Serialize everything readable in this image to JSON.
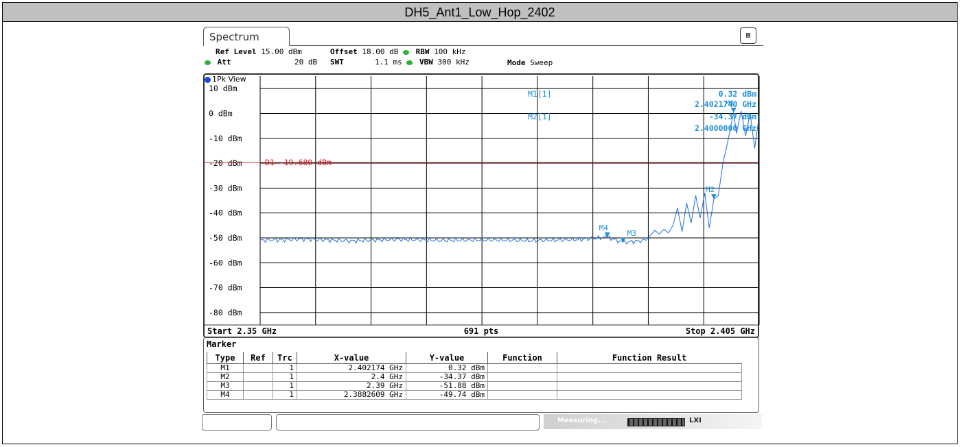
{
  "window": {
    "title": "DH5_Ant1_Low_Hop_2402"
  },
  "analyzer": {
    "tab_label": "Spectrum",
    "settings": {
      "ref_level_label": "Ref Level",
      "ref_level_value": "15.00 dBm",
      "offset_label": "Offset",
      "offset_value": "18.00 dB",
      "rbw_label": "RBW",
      "rbw_value": "100 kHz",
      "att_label": "Att",
      "att_value": "20 dB",
      "swt_label": "SWT",
      "swt_value": "1.1 ms",
      "vbw_label": "VBW",
      "vbw_value": "300 kHz",
      "mode_label": "Mode",
      "mode_value": "Sweep"
    },
    "view_label": "1Pk View",
    "marker_readout": {
      "m1_label": "M1[1]",
      "m1_level": "0.32 dBm",
      "m1_freq": "2.4021740 GHz",
      "m2_label": "M2[1]",
      "m2_level": "-34.37 dBm",
      "m2_freq": "2.4000000 GHz"
    },
    "footer": {
      "start": "Start 2.35 GHz",
      "points": "691 pts",
      "stop": "Stop 2.405 GHz"
    },
    "marker_table": {
      "title": "Marker",
      "headers": [
        "Type",
        "Ref",
        "Trc",
        "X-value",
        "Y-value",
        "Function",
        "Function Result"
      ],
      "rows": [
        [
          "M1",
          "",
          "1",
          "2.402174 GHz",
          "0.32 dBm",
          "",
          ""
        ],
        [
          "M2",
          "",
          "1",
          "2.4 GHz",
          "-34.37 dBm",
          "",
          ""
        ],
        [
          "M3",
          "",
          "1",
          "2.39 GHz",
          "-51.88 dBm",
          "",
          ""
        ],
        [
          "M4",
          "",
          "1",
          "2.3882609 GHz",
          "-49.74 dBm",
          "",
          ""
        ]
      ]
    },
    "status": {
      "measuring": "Measuring...",
      "lxi": "LXI"
    }
  },
  "colors": {
    "trace": "#1a6fe0",
    "display_line": "#d02020",
    "marker": "#1e90d6",
    "grid": "#000000"
  },
  "chart_data": {
    "type": "line",
    "xlabel": "",
    "ylabel": "",
    "xlim": [
      2.35,
      2.405
    ],
    "ylim": [
      -85,
      15
    ],
    "grid": true,
    "y_ticks": [
      10,
      0,
      -10,
      -20,
      -30,
      -40,
      -50,
      -60,
      -70,
      -80
    ],
    "y_tick_labels": [
      "10 dBm",
      "0 dBm",
      "-10 dBm",
      "-20 dBm",
      "-30 dBm",
      "-40 dBm",
      "-50 dBm",
      "-60 dBm",
      "-70 dBm",
      "-80 dBm"
    ],
    "display_line": {
      "label": "D1 -19.680 dBm",
      "value": -19.68
    },
    "series": [
      {
        "x": [
          2.35,
          2.355,
          2.36,
          2.365,
          2.37,
          2.375,
          2.38,
          2.385,
          2.3882609,
          2.39,
          2.3925,
          2.3935,
          2.394,
          2.3945,
          2.395,
          2.3955,
          2.396,
          2.3965,
          2.397,
          2.3975,
          2.398,
          2.3985,
          2.399,
          2.3995,
          2.4,
          2.4005,
          2.401,
          2.4015,
          2.402174,
          2.4025,
          2.403,
          2.4035,
          2.404,
          2.4045,
          2.405
        ],
        "y": [
          -51.0,
          -50.5,
          -51.2,
          -50.6,
          -51.0,
          -50.8,
          -51.1,
          -50.7,
          -49.74,
          -51.88,
          -51.0,
          -47.0,
          -48.5,
          -46.5,
          -48.0,
          -45.0,
          -38.0,
          -47.5,
          -36.0,
          -44.0,
          -33.0,
          -42.0,
          -32.0,
          -46.0,
          -34.37,
          -33.0,
          -20.0,
          -12.0,
          0.32,
          -8.0,
          1.0,
          -9.0,
          0.0,
          -14.0,
          -1.0
        ]
      }
    ],
    "markers": [
      {
        "label": "M1",
        "x": 2.402174,
        "y": 0.32
      },
      {
        "label": "M2",
        "x": 2.4,
        "y": -34.37
      },
      {
        "label": "M3",
        "x": 2.39,
        "y": -51.88
      },
      {
        "label": "M4",
        "x": 2.3882609,
        "y": -49.74
      }
    ]
  }
}
